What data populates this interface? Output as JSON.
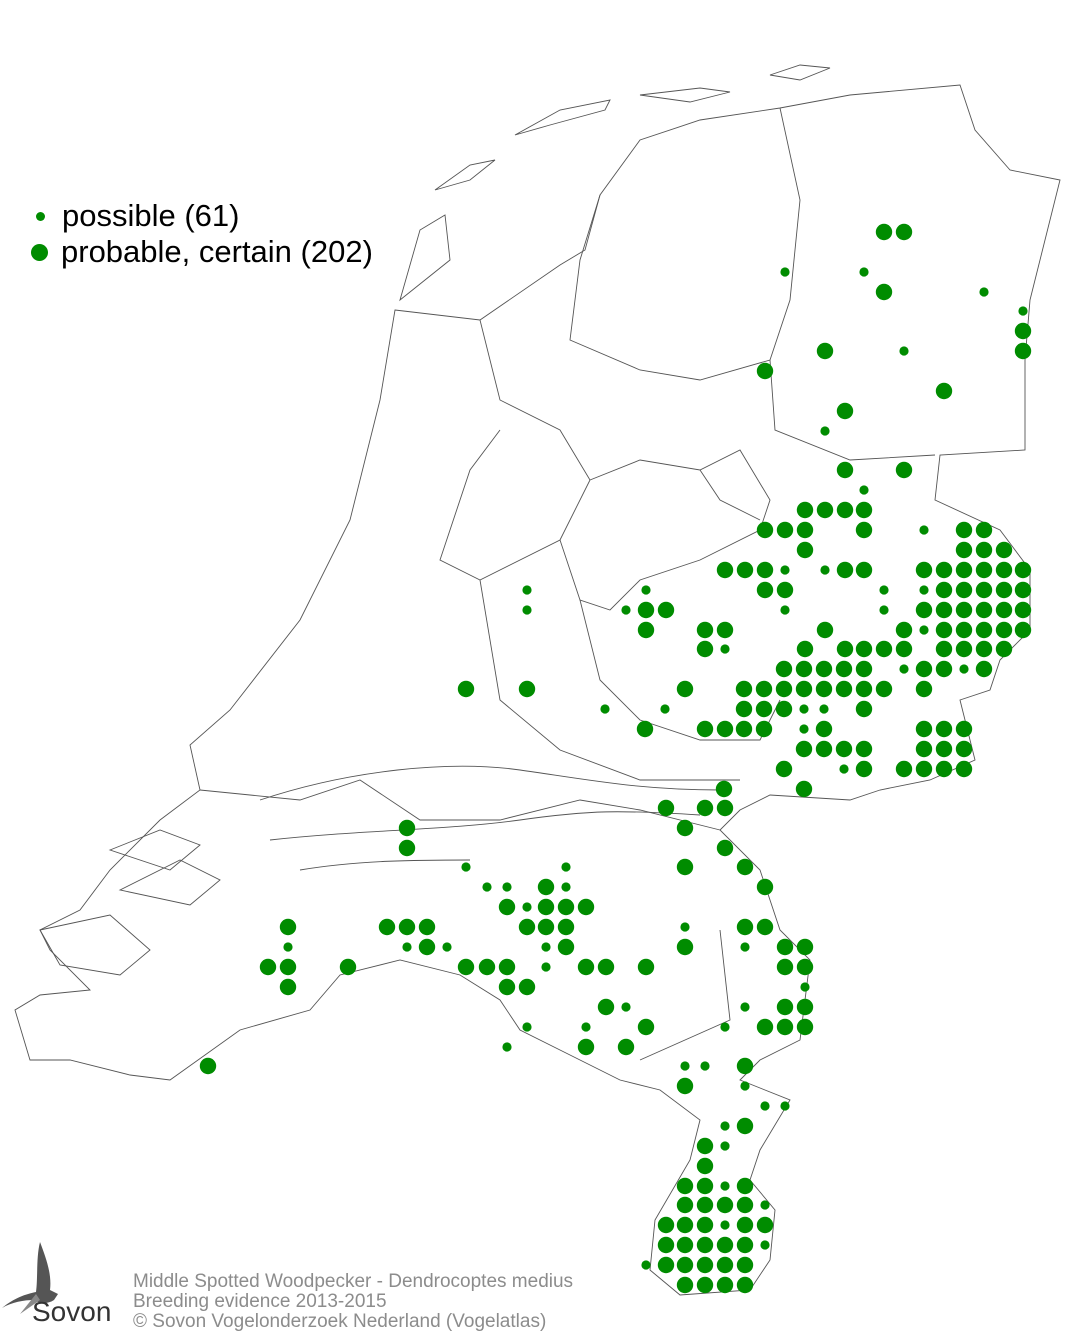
{
  "legend": {
    "items": [
      {
        "label": "possible (61)",
        "size": "small"
      },
      {
        "label": "probable, certain (202)",
        "size": "large"
      }
    ]
  },
  "colors": {
    "dot": "#008c00",
    "outline": "#555555",
    "credits": "#8c8c8c"
  },
  "credits": {
    "species": "Middle Spotted Woodpecker - Dendrocoptes medius",
    "subtitle": "Breeding evidence 2013-2015",
    "copyright": "© Sovon Vogelonderzoek Nederland (Vogelatlas)"
  },
  "logo": {
    "text": "Sovon"
  }
}
